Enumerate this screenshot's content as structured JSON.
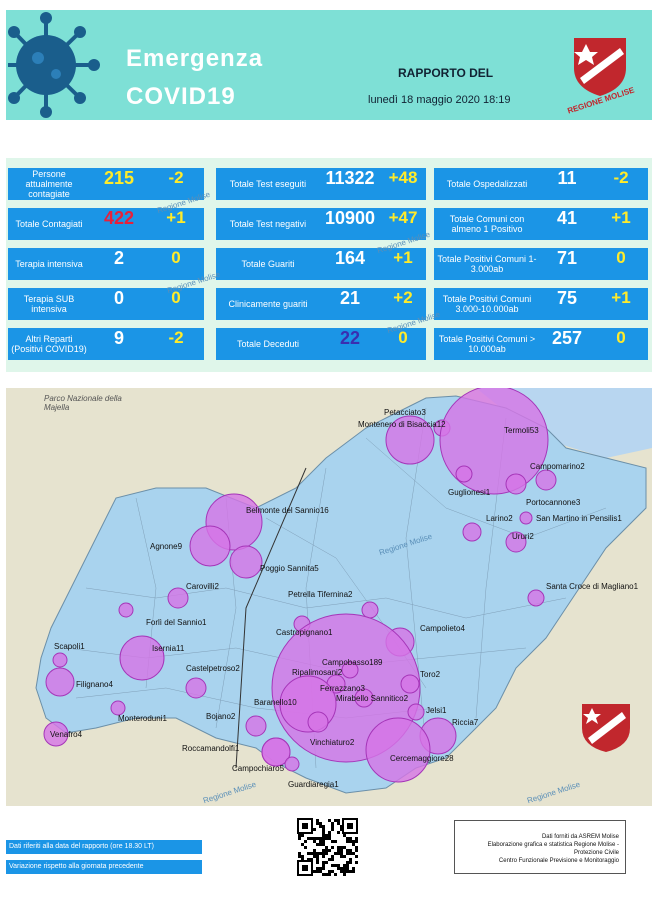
{
  "header": {
    "title_line1": "Emergenza",
    "title_line2": "COVID19",
    "rapporto_label": "RAPPORTO DEL",
    "report_date": "lunedì 18 maggio 2020 18:19",
    "logo_text": "REGIONE MOLISE",
    "colors": {
      "banner": "#7ee0d6",
      "accent": "#c1272d"
    }
  },
  "stats": {
    "box_color": "#1b95e6",
    "delta_color": "#ffeb2a",
    "watermark": "Regione Molise",
    "rows": [
      [
        {
          "label": "Persone attualmente contagiate",
          "value": "215",
          "delta": "-2",
          "value_color": "#ffeb2a"
        },
        {
          "label": "Totale Test eseguiti",
          "value": "11322",
          "delta": "+48"
        },
        {
          "label": "Totale Ospedalizzati",
          "value": "11",
          "delta": "-2"
        }
      ],
      [
        {
          "label": "Totale Contagiati",
          "value": "422",
          "delta": "+1",
          "value_color": "#e8203a"
        },
        {
          "label": "Totale Test negativi",
          "value": "10900",
          "delta": "+47"
        },
        {
          "label": "Totale Comuni con almeno 1 Positivo",
          "value": "41",
          "delta": "+1"
        }
      ],
      [
        {
          "label": "Terapia intensiva",
          "value": "2",
          "delta": "0"
        },
        {
          "label": "Totale Guariti",
          "value": "164",
          "delta": "+1"
        },
        {
          "label": "Totale Positivi Comuni 1-3.000ab",
          "value": "71",
          "delta": "0"
        }
      ],
      [
        {
          "label": "Terapia SUB intensiva",
          "value": "0",
          "delta": "0"
        },
        {
          "label": "Clinicamente guariti",
          "value": "21",
          "delta": "+2"
        },
        {
          "label": "Totale Positivi Comuni 3.000-10.000ab",
          "value": "75",
          "delta": "+1"
        }
      ],
      [
        {
          "label": "Altri Reparti (Positivi COVID19)",
          "value": "9",
          "delta": "-2"
        },
        {
          "label": "Totale Deceduti",
          "value": "22",
          "delta": "0",
          "value_color": "#3a2fb0"
        },
        {
          "label": "Totale Positivi Comuni > 10.000ab",
          "value": "257",
          "delta": "0"
        }
      ]
    ]
  },
  "map": {
    "park_label": "Parco Nazionale della Majella",
    "watermark": "Regione Molise",
    "region_fill": "#a9d3ee",
    "bubble_fill": "#d674e6",
    "towns": [
      "Petacciato3",
      "Montenero di Bisaccia12",
      "Termoli53",
      "Campomarino2",
      "Guglionesi1",
      "Portocannone3",
      "Larino2",
      "San Martino in Pensilis1",
      "Ururi2",
      "Belmonte del Sannio16",
      "Agnone9",
      "Poggio Sannita5",
      "Carovilli2",
      "Santa Croce di Magliano1",
      "Petrella Tifernina2",
      "Forlì del Sannio1",
      "Castropignano1",
      "Campolieto4",
      "Scapoli1",
      "Isernia11",
      "Campobasso189",
      "Ripalimosani2",
      "Toro2",
      "Castelpetroso2",
      "Ferrazzano3",
      "Filignano4",
      "Mirabello Sannitico2",
      "Baranello10",
      "Jelsi1",
      "Monteroduni1",
      "Bojano2",
      "Riccia7",
      "Venafro4",
      "Vinchiaturo2",
      "Roccamandolfi1",
      "Cercemaggiore28",
      "Campochiaro5",
      "Guardiaregia1"
    ]
  },
  "footer": {
    "legend_date": "Dati riferiti alla data del rapporto  (ore 18.30 LT)",
    "legend_variation": "Variazione rispetto alla giornata precedente",
    "credits_line1": "Dati forniti da ASREM Molise",
    "credits_line2": "Elaborazione grafica e statistica Regione Molise - Protezione Civile",
    "credits_line3": "Centro Funzionale Previsione e Monitoraggio"
  }
}
